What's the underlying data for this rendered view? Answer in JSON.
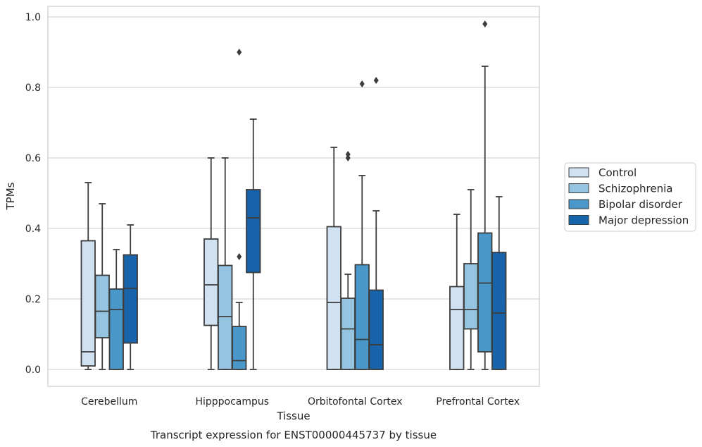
{
  "chart_data": {
    "type": "box",
    "title": "Transcript expression for ENST00000445737 by tissue",
    "xlabel": "Tissue",
    "ylabel": "TPMs",
    "ylim": [
      -0.045,
      1.03
    ],
    "yticks": [
      0.0,
      0.2,
      0.4,
      0.6,
      0.8,
      1.0
    ],
    "ytick_labels": [
      "0.0",
      "0.2",
      "0.4",
      "0.6",
      "0.8",
      "1.0"
    ],
    "grid": "horizontal",
    "legend_position": "right",
    "categories": [
      "Cerebellum",
      "Hipppocampus",
      "Orbitofontal Cortex",
      "Prefrontal Cortex"
    ],
    "series": [
      {
        "name": "Control",
        "color": "#d0e1f2",
        "boxes": [
          {
            "whisker_low": 0.0,
            "q1": 0.01,
            "median": 0.05,
            "q3": 0.365,
            "whisker_high": 0.53,
            "outliers": []
          },
          {
            "whisker_low": 0.0,
            "q1": 0.125,
            "median": 0.24,
            "q3": 0.37,
            "whisker_high": 0.6,
            "outliers": []
          },
          {
            "whisker_low": 0.0,
            "q1": 0.0,
            "median": 0.19,
            "q3": 0.405,
            "whisker_high": 0.63,
            "outliers": []
          },
          {
            "whisker_low": 0.0,
            "q1": 0.0,
            "median": 0.17,
            "q3": 0.235,
            "whisker_high": 0.44,
            "outliers": []
          }
        ]
      },
      {
        "name": "Schizophrenia",
        "color": "#94c4df",
        "boxes": [
          {
            "whisker_low": 0.0,
            "q1": 0.09,
            "median": 0.165,
            "q3": 0.267,
            "whisker_high": 0.47,
            "outliers": []
          },
          {
            "whisker_low": 0.0,
            "q1": 0.0,
            "median": 0.15,
            "q3": 0.295,
            "whisker_high": 0.6,
            "outliers": []
          },
          {
            "whisker_low": 0.0,
            "q1": 0.0,
            "median": 0.115,
            "q3": 0.202,
            "whisker_high": 0.27,
            "outliers": [
              0.6,
              0.61
            ]
          },
          {
            "whisker_low": 0.0,
            "q1": 0.115,
            "median": 0.17,
            "q3": 0.3,
            "whisker_high": 0.51,
            "outliers": []
          }
        ]
      },
      {
        "name": "Bipolar disorder",
        "color": "#4a98c9",
        "boxes": [
          {
            "whisker_low": 0.0,
            "q1": 0.0,
            "median": 0.17,
            "q3": 0.228,
            "whisker_high": 0.34,
            "outliers": []
          },
          {
            "whisker_low": 0.0,
            "q1": 0.0,
            "median": 0.025,
            "q3": 0.122,
            "whisker_high": 0.19,
            "outliers": [
              0.32,
              0.9
            ]
          },
          {
            "whisker_low": 0.0,
            "q1": 0.0,
            "median": 0.085,
            "q3": 0.297,
            "whisker_high": 0.55,
            "outliers": [
              0.81
            ]
          },
          {
            "whisker_low": 0.0,
            "q1": 0.05,
            "median": 0.245,
            "q3": 0.387,
            "whisker_high": 0.86,
            "outliers": [
              0.98
            ]
          }
        ]
      },
      {
        "name": "Major depression",
        "color": "#1764ab",
        "boxes": [
          {
            "whisker_low": 0.0,
            "q1": 0.075,
            "median": 0.23,
            "q3": 0.325,
            "whisker_high": 0.41,
            "outliers": []
          },
          {
            "whisker_low": 0.0,
            "q1": 0.275,
            "median": 0.43,
            "q3": 0.51,
            "whisker_high": 0.71,
            "outliers": []
          },
          {
            "whisker_low": 0.0,
            "q1": 0.0,
            "median": 0.07,
            "q3": 0.225,
            "whisker_high": 0.45,
            "outliers": [
              0.82
            ]
          },
          {
            "whisker_low": 0.0,
            "q1": 0.0,
            "median": 0.16,
            "q3": 0.332,
            "whisker_high": 0.49,
            "outliers": []
          }
        ]
      }
    ]
  }
}
